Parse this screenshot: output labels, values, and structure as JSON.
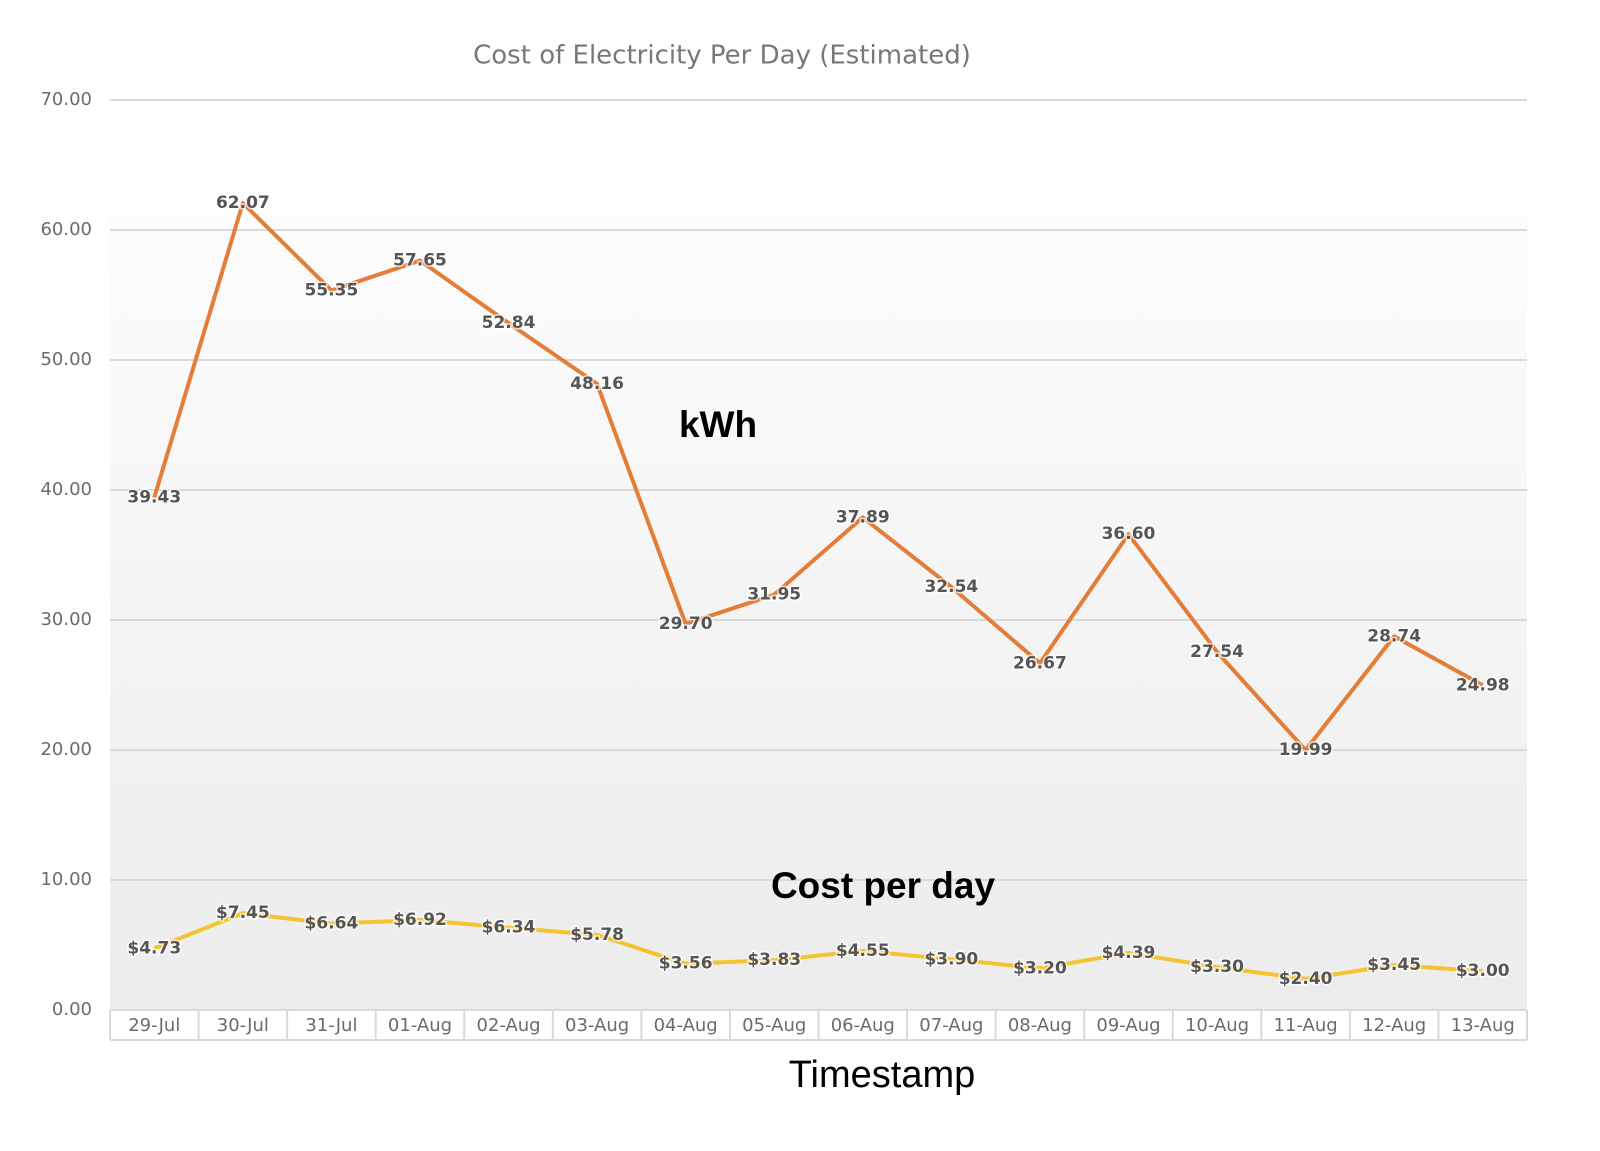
{
  "chart_data": {
    "type": "line",
    "title": "Cost of Electricity Per Day (Estimated)",
    "x_label": "Timestamp",
    "categories": [
      "29-Jul",
      "30-Jul",
      "31-Jul",
      "01-Aug",
      "02-Aug",
      "03-Aug",
      "04-Aug",
      "05-Aug",
      "06-Aug",
      "07-Aug",
      "08-Aug",
      "09-Aug",
      "10-Aug",
      "11-Aug",
      "12-Aug",
      "13-Aug"
    ],
    "series": [
      {
        "name": "kWh",
        "color": "#e47d38",
        "values": [
          39.43,
          62.07,
          55.35,
          57.65,
          52.84,
          48.16,
          29.7,
          31.95,
          37.89,
          32.54,
          26.67,
          36.6,
          27.54,
          19.99,
          28.74,
          24.98
        ],
        "value_labels": [
          "39.43",
          "62.07",
          "55.35",
          "57.65",
          "52.84",
          "48.16",
          "29.70",
          "31.95",
          "37.89",
          "32.54",
          "26.67",
          "36.60",
          "27.54",
          "19.99",
          "28.74",
          "24.98"
        ]
      },
      {
        "name": "Cost per day",
        "color": "#f4c430",
        "values": [
          4.73,
          7.45,
          6.64,
          6.92,
          6.34,
          5.78,
          3.56,
          3.83,
          4.55,
          3.9,
          3.2,
          4.39,
          3.3,
          2.4,
          3.45,
          3.0
        ],
        "value_labels": [
          "$4.73",
          "$7.45",
          "$6.64",
          "$6.92",
          "$6.34",
          "$5.78",
          "$3.56",
          "$3.83",
          "$4.55",
          "$3.90",
          "$3.20",
          "$4.39",
          "$3.30",
          "$2.40",
          "$3.45",
          "$3.00"
        ]
      }
    ],
    "ylim": [
      0,
      70
    ],
    "yticks": [
      {
        "value": 0,
        "label": "0.00"
      },
      {
        "value": 10,
        "label": "10.00"
      },
      {
        "value": 20,
        "label": "20.00"
      },
      {
        "value": 30,
        "label": "30.00"
      },
      {
        "value": 40,
        "label": "40.00"
      },
      {
        "value": 50,
        "label": "50.00"
      },
      {
        "value": 60,
        "label": "60.00"
      },
      {
        "value": 70,
        "label": "70.00"
      }
    ],
    "grid": true
  }
}
